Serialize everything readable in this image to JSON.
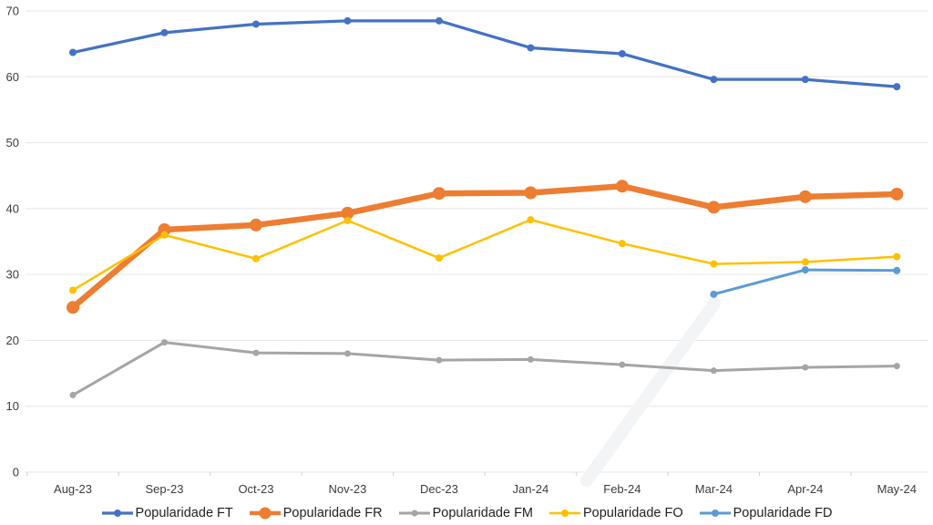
{
  "chart_data": {
    "type": "line",
    "title": "",
    "xlabel": "",
    "ylabel": "",
    "categories": [
      "Aug-23",
      "Sep-23",
      "Oct-23",
      "Nov-23",
      "Dec-23",
      "Jan-24",
      "Feb-24",
      "Mar-24",
      "Apr-24",
      "May-24"
    ],
    "series": [
      {
        "name": "Popularidade FT",
        "color": "#4472C4",
        "values": [
          63.7,
          66.7,
          68.0,
          68.5,
          68.5,
          64.4,
          63.5,
          59.6,
          59.6,
          58.5
        ]
      },
      {
        "name": "Popularidade FR",
        "color": "#ED7D31",
        "values": [
          25.0,
          36.8,
          37.5,
          39.3,
          42.3,
          42.4,
          43.4,
          40.2,
          41.8,
          42.2
        ]
      },
      {
        "name": "Popularidade FM",
        "color": "#A5A5A5",
        "values": [
          11.7,
          19.7,
          18.1,
          18.0,
          17.0,
          17.1,
          16.3,
          15.4,
          15.9,
          16.1
        ]
      },
      {
        "name": "Popularidade FO",
        "color": "#FFC000",
        "values": [
          27.6,
          36.0,
          32.4,
          38.2,
          32.5,
          38.3,
          34.7,
          31.6,
          31.9,
          32.7
        ]
      },
      {
        "name": "Popularidade FD",
        "color": "#5B9BD5",
        "values": [
          null,
          null,
          null,
          null,
          null,
          null,
          null,
          27.0,
          30.7,
          30.6
        ]
      }
    ],
    "ylim": [
      0,
      70
    ],
    "yticks": [
      0,
      10,
      20,
      30,
      40,
      50,
      60,
      70
    ],
    "grid": "horizontal",
    "gridline_color": "#e6e6e6",
    "tick_color": "#cfcfcf",
    "axis_text_color": "#3c3c3c",
    "legend_position": "bottom"
  }
}
